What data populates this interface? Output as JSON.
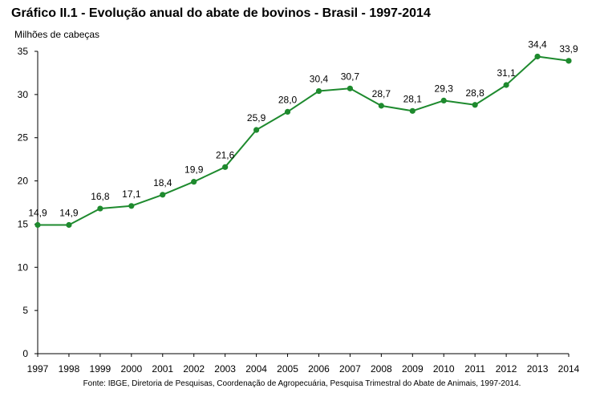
{
  "title": "Gráfico II.1 - Evolução anual do abate de bovinos - Brasil - 1997-2014",
  "source": "Fonte: IBGE, Diretoria de Pesquisas, Coordenação de Agropecuária, Pesquisa Trimestral do Abate de Animais, 1997-2014.",
  "colors": {
    "line": "#1e8a2e",
    "marker": "#1e8a2e",
    "axis": "#000000"
  },
  "chart_data": {
    "type": "line",
    "title": "Gráfico II.1 - Evolução anual do abate de bovinos - Brasil - 1997-2014",
    "ylabel": "Milhões de cabeças",
    "xlabel": "",
    "ylim": [
      0,
      35
    ],
    "yticks": [
      0,
      5,
      10,
      15,
      20,
      25,
      30,
      35
    ],
    "grid": false,
    "legend": "none",
    "categories": [
      "1997",
      "1998",
      "1999",
      "2000",
      "2001",
      "2002",
      "2003",
      "2004",
      "2005",
      "2006",
      "2007",
      "2008",
      "2009",
      "2010",
      "2011",
      "2012",
      "2013",
      "2014"
    ],
    "series": [
      {
        "values": [
          14.9,
          14.9,
          16.8,
          17.1,
          18.4,
          19.9,
          21.6,
          25.9,
          28.0,
          30.4,
          30.7,
          28.7,
          28.1,
          29.3,
          28.8,
          31.1,
          34.4,
          33.9
        ],
        "labels": [
          "14,9",
          "14,9",
          "16,8",
          "17,1",
          "18,4",
          "19,9",
          "21,6",
          "25,9",
          "28,0",
          "30,4",
          "30,7",
          "28,7",
          "28,1",
          "29,3",
          "28,8",
          "31,1",
          "34,4",
          "33,9"
        ]
      }
    ]
  }
}
